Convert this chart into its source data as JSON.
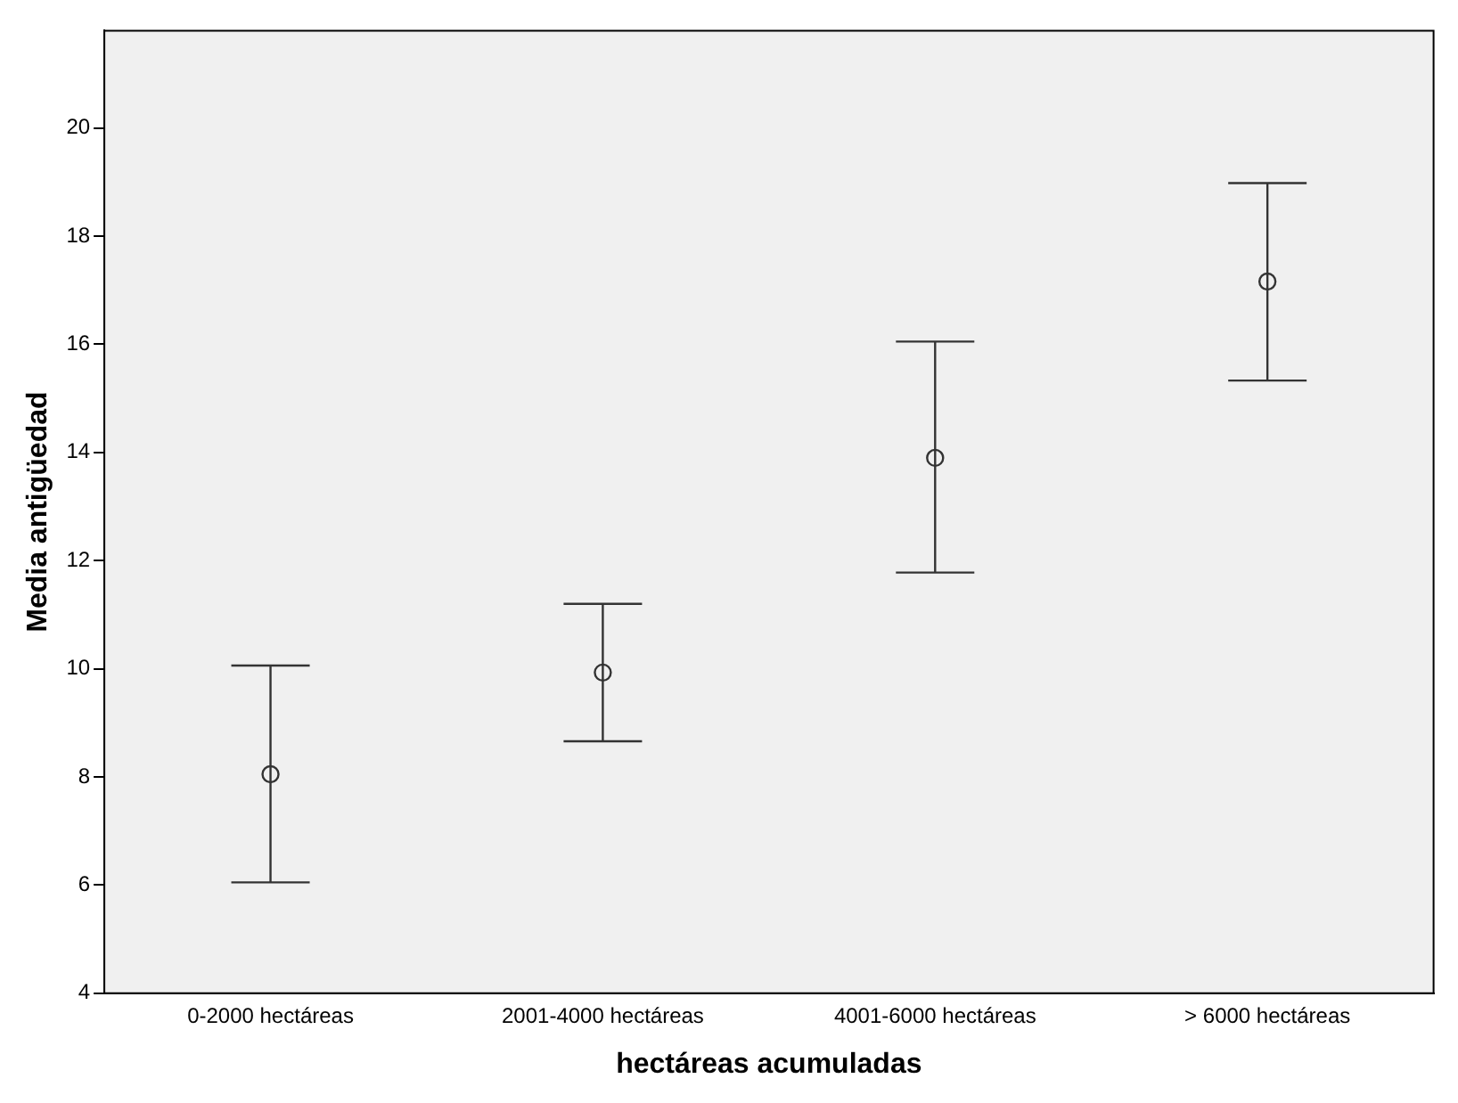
{
  "chart_data": {
    "type": "scatter",
    "xlabel": "hectáreas acumuladas",
    "ylabel": "Media antigüedad",
    "categories": [
      "0-2000 hectáreas",
      "2001-4000 hectáreas",
      "4001-6000 hectáreas",
      "> 6000 hectáreas"
    ],
    "values": [
      8.05,
      9.93,
      13.9,
      17.16
    ],
    "errors": [
      [
        6.05,
        10.06
      ],
      [
        8.66,
        11.2
      ],
      [
        11.78,
        16.05
      ],
      [
        15.33,
        18.98
      ]
    ],
    "color": "#333333",
    "marker": "circle",
    "ylim": [
      4,
      21.8
    ],
    "yticks": [
      4,
      6,
      8,
      10,
      12,
      14,
      16,
      18,
      20
    ]
  }
}
